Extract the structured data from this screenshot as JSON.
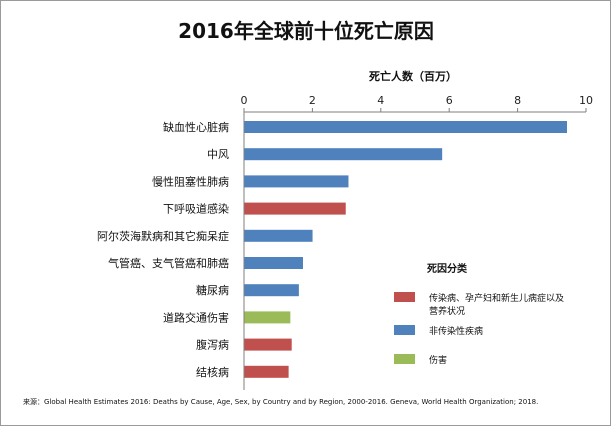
{
  "chart_data": {
    "type": "bar",
    "orientation": "horizontal",
    "title": "2016年全球前十位死亡原因",
    "xlabel": "死亡人数（百万）",
    "xlim": [
      0,
      10
    ],
    "xticks": [
      0,
      2,
      4,
      6,
      8,
      10
    ],
    "grid": false,
    "categories": [
      "缺血性心脏病",
      "中风",
      "慢性阻塞性肺病",
      "下呼吸道感染",
      "阿尔茨海默病和其它痴呆症",
      "气管癌、支气管癌和肺癌",
      "糖尿病",
      "道路交通伤害",
      "腹泻病",
      "结核病"
    ],
    "values": [
      9.43,
      5.78,
      3.04,
      2.96,
      1.99,
      1.71,
      1.59,
      1.34,
      1.38,
      1.29
    ],
    "groups": [
      "noncommunicable",
      "noncommunicable",
      "noncommunicable",
      "communicable",
      "noncommunicable",
      "noncommunicable",
      "noncommunicable",
      "injury",
      "communicable",
      "communicable"
    ],
    "legend": {
      "title": "死因分类",
      "position": "right",
      "items": [
        {
          "key": "communicable",
          "label_lines": [
            "传染病、孕产妇和新生儿病症以及",
            "营养状况"
          ],
          "color": "#c0504d"
        },
        {
          "key": "noncommunicable",
          "label_lines": [
            "非传染性疾病"
          ],
          "color": "#4f81bd"
        },
        {
          "key": "injury",
          "label_lines": [
            "伤害"
          ],
          "color": "#9bbb59"
        }
      ]
    },
    "source": "来源：Global Health Estimates 2016: Deaths by Cause, Age, Sex, by Country and by Region, 2000-2016. Geneva, World Health Organization; 2018."
  }
}
